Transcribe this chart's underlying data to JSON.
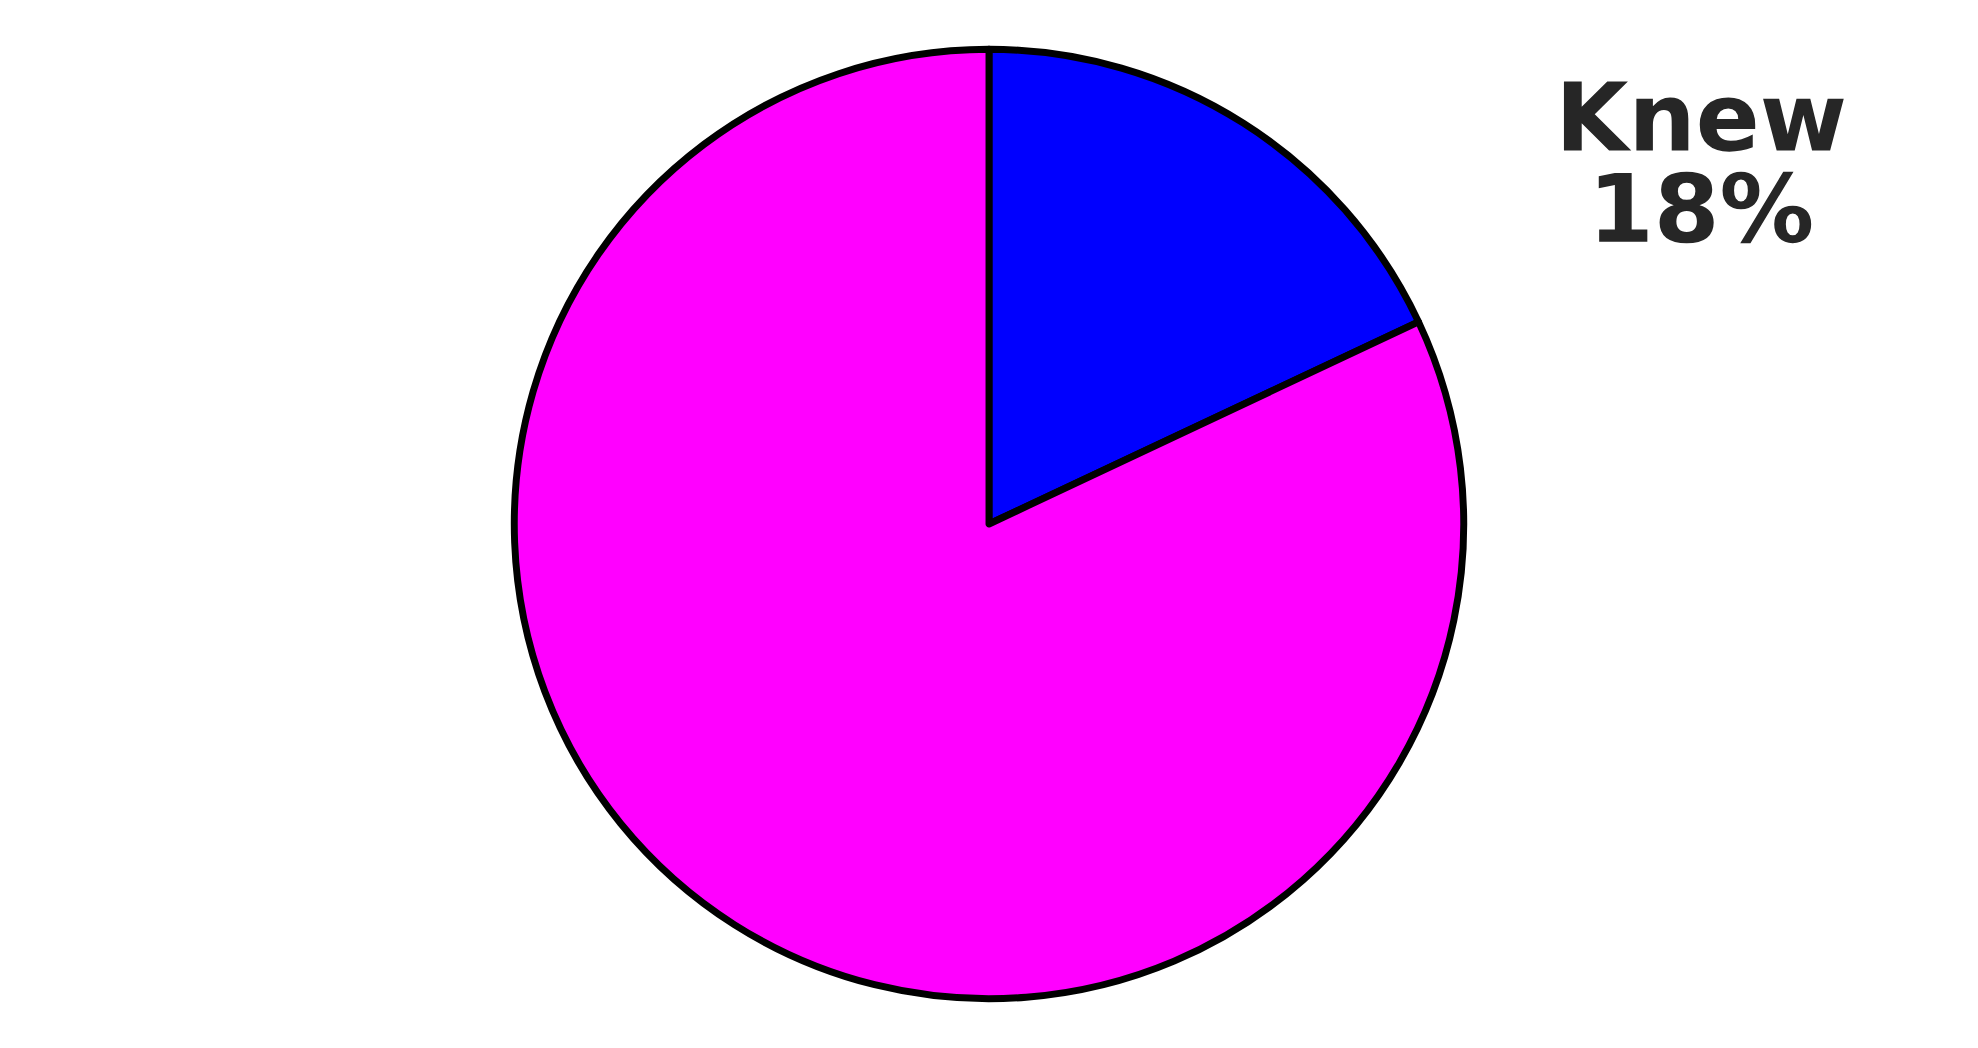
{
  "chart_data": {
    "type": "pie",
    "categories": [
      "Knew",
      null
    ],
    "values": [
      18,
      82
    ],
    "colors": [
      "#0000ff",
      "#ff00ff"
    ],
    "value_labels": [
      "18%",
      null
    ],
    "legend": false
  }
}
